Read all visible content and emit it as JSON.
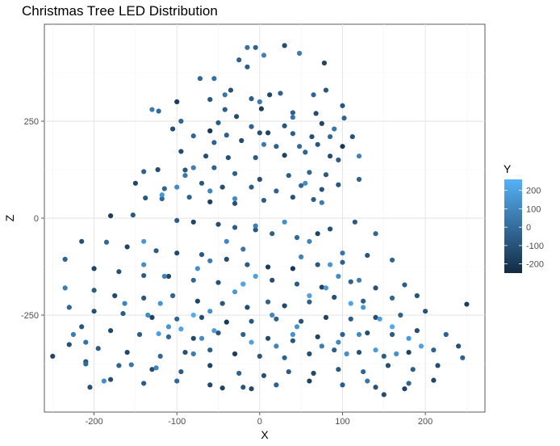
{
  "chart_data": {
    "type": "scatter",
    "title": "Christmas Tree LED Distribution",
    "xlabel": "X",
    "ylabel": "Z",
    "xlim": [
      -260,
      272
    ],
    "ylim": [
      -500,
      500
    ],
    "x_ticks": [
      -200,
      -100,
      0,
      100,
      200
    ],
    "y_ticks": [
      -250,
      0,
      250
    ],
    "x_tick_labels": [
      "-200",
      "-100",
      "0",
      "100",
      "200"
    ],
    "y_tick_labels": [
      "-250",
      "0",
      "250"
    ],
    "grid": true,
    "legend": {
      "title": "Y",
      "position": "right",
      "range": [
        -250,
        260
      ],
      "ticks": [
        200,
        100,
        0,
        -100,
        -200
      ],
      "tick_labels": [
        "200",
        "100",
        "0",
        "-100",
        "-200"
      ],
      "color_low": "#132b43",
      "color_high": "#56b1f7"
    },
    "points": [
      [
        -5,
        440,
        -40
      ],
      [
        30,
        445,
        -120
      ],
      [
        48,
        425,
        60
      ],
      [
        -25,
        408,
        -40
      ],
      [
        -15,
        390,
        -60
      ],
      [
        78,
        400,
        -150
      ],
      [
        -72,
        360,
        -20
      ],
      [
        -55,
        360,
        10
      ],
      [
        -35,
        330,
        -100
      ],
      [
        -42,
        318,
        40
      ],
      [
        -60,
        306,
        -80
      ],
      [
        -10,
        308,
        -60
      ],
      [
        12,
        318,
        -150
      ],
      [
        25,
        322,
        -40
      ],
      [
        65,
        318,
        -30
      ],
      [
        80,
        330,
        -80
      ],
      [
        100,
        290,
        -90
      ],
      [
        -100,
        300,
        -180
      ],
      [
        -122,
        276,
        -10
      ],
      [
        -42,
        280,
        -60
      ],
      [
        2,
        282,
        -180
      ],
      [
        40,
        272,
        -40
      ],
      [
        68,
        270,
        -120
      ],
      [
        -28,
        262,
        -120
      ],
      [
        -50,
        246,
        -70
      ],
      [
        -95,
        250,
        -30
      ],
      [
        -10,
        236,
        -40
      ],
      [
        30,
        238,
        -80
      ],
      [
        75,
        244,
        -140
      ],
      [
        102,
        258,
        -30
      ],
      [
        -105,
        230,
        -120
      ],
      [
        -60,
        225,
        -200
      ],
      [
        -80,
        212,
        -30
      ],
      [
        -40,
        214,
        -50
      ],
      [
        0,
        220,
        -100
      ],
      [
        10,
        220,
        -160
      ],
      [
        40,
        218,
        -60
      ],
      [
        63,
        210,
        -120
      ],
      [
        85,
        210,
        -20
      ],
      [
        112,
        210,
        -100
      ],
      [
        -55,
        195,
        -40
      ],
      [
        -22,
        200,
        -120
      ],
      [
        20,
        185,
        -50
      ],
      [
        48,
        185,
        -10
      ],
      [
        70,
        190,
        -80
      ],
      [
        100,
        185,
        -200
      ],
      [
        -65,
        160,
        -120
      ],
      [
        -95,
        172,
        -130
      ],
      [
        -38,
        156,
        -100
      ],
      [
        -5,
        156,
        -70
      ],
      [
        30,
        162,
        -160
      ],
      [
        55,
        170,
        -40
      ],
      [
        85,
        160,
        -120
      ],
      [
        95,
        150,
        -60
      ],
      [
        -140,
        120,
        -40
      ],
      [
        -123,
        125,
        -110
      ],
      [
        -90,
        124,
        -80
      ],
      [
        -55,
        130,
        -40
      ],
      [
        -30,
        115,
        -50
      ],
      [
        0,
        100,
        -110
      ],
      [
        35,
        110,
        -60
      ],
      [
        60,
        118,
        -20
      ],
      [
        80,
        112,
        -70
      ],
      [
        120,
        100,
        -40
      ],
      [
        -150,
        90,
        -150
      ],
      [
        -115,
        76,
        -30
      ],
      [
        -70,
        90,
        -80
      ],
      [
        -45,
        80,
        -120
      ],
      [
        -10,
        80,
        -60
      ],
      [
        20,
        70,
        -40
      ],
      [
        50,
        84,
        -30
      ],
      [
        75,
        74,
        -100
      ],
      [
        95,
        86,
        -80
      ],
      [
        -138,
        52,
        -80
      ],
      [
        -118,
        50,
        -20
      ],
      [
        -85,
        54,
        -40
      ],
      [
        -60,
        42,
        -180
      ],
      [
        -30,
        38,
        -110
      ],
      [
        5,
        46,
        -60
      ],
      [
        40,
        54,
        -100
      ],
      [
        65,
        48,
        -60
      ],
      [
        -180,
        6,
        -180
      ],
      [
        -153,
        8,
        -70
      ],
      [
        -100,
        -6,
        -60
      ],
      [
        -80,
        -10,
        -150
      ],
      [
        -50,
        -16,
        -120
      ],
      [
        -30,
        -24,
        -60
      ],
      [
        -5,
        -30,
        -90
      ],
      [
        15,
        -40,
        -50
      ],
      [
        45,
        -50,
        -10
      ],
      [
        70,
        -40,
        -160
      ],
      [
        85,
        -28,
        -110
      ],
      [
        115,
        -10,
        -70
      ],
      [
        140,
        -40,
        -20
      ],
      [
        -215,
        -60,
        -100
      ],
      [
        -185,
        -62,
        -20
      ],
      [
        -160,
        -74,
        -160
      ],
      [
        -125,
        -84,
        -60
      ],
      [
        -100,
        -90,
        -140
      ],
      [
        -70,
        -94,
        -80
      ],
      [
        -40,
        -106,
        -120
      ],
      [
        -15,
        -120,
        -60
      ],
      [
        10,
        -126,
        -180
      ],
      [
        40,
        -130,
        -200
      ],
      [
        70,
        -120,
        -70
      ],
      [
        100,
        -114,
        -40
      ],
      [
        130,
        -96,
        -80
      ],
      [
        160,
        -108,
        -30
      ],
      [
        -235,
        -106,
        -40
      ],
      [
        -200,
        -130,
        -150
      ],
      [
        -170,
        -138,
        -100
      ],
      [
        -140,
        -148,
        -60
      ],
      [
        -110,
        -150,
        -140
      ],
      [
        -80,
        -160,
        -20
      ],
      [
        -50,
        -166,
        -100
      ],
      [
        -20,
        -170,
        -70
      ],
      [
        15,
        -160,
        -120
      ],
      [
        45,
        -170,
        -60
      ],
      [
        75,
        -178,
        -150
      ],
      [
        110,
        -164,
        -40
      ],
      [
        140,
        -180,
        -100
      ],
      [
        175,
        -172,
        -60
      ],
      [
        -200,
        -186,
        -60
      ],
      [
        -175,
        -200,
        -130
      ],
      [
        -140,
        -206,
        -80
      ],
      [
        -105,
        -200,
        -30
      ],
      [
        -75,
        -214,
        -150
      ],
      [
        -45,
        -220,
        -80
      ],
      [
        -15,
        -230,
        -120
      ],
      [
        10,
        -216,
        -40
      ],
      [
        30,
        -226,
        -140
      ],
      [
        60,
        -216,
        -50
      ],
      [
        90,
        -204,
        -110
      ],
      [
        125,
        -214,
        -60
      ],
      [
        160,
        -206,
        -30
      ],
      [
        190,
        -200,
        -90
      ],
      [
        -230,
        -230,
        -20
      ],
      [
        -200,
        -240,
        -110
      ],
      [
        -165,
        -246,
        -60
      ],
      [
        -130,
        -256,
        -160
      ],
      [
        -100,
        -260,
        -30
      ],
      [
        -70,
        -256,
        -120
      ],
      [
        -40,
        -268,
        -200
      ],
      [
        -10,
        -266,
        -80
      ],
      [
        20,
        -260,
        -40
      ],
      [
        50,
        -266,
        -100
      ],
      [
        80,
        -256,
        -160
      ],
      [
        110,
        -260,
        -60
      ],
      [
        140,
        -256,
        -120
      ],
      [
        170,
        -250,
        -40
      ],
      [
        200,
        -240,
        -100
      ],
      [
        -215,
        -280,
        -80
      ],
      [
        -180,
        -290,
        -150
      ],
      [
        -145,
        -300,
        -60
      ],
      [
        -110,
        -306,
        -20
      ],
      [
        -80,
        -310,
        -140
      ],
      [
        -50,
        -296,
        -90
      ],
      [
        -20,
        -300,
        -40
      ],
      [
        10,
        -310,
        -130
      ],
      [
        40,
        -316,
        -80
      ],
      [
        70,
        -306,
        -160
      ],
      [
        100,
        -300,
        -50
      ],
      [
        130,
        -296,
        -110
      ],
      [
        160,
        -300,
        -70
      ],
      [
        190,
        -290,
        -120
      ],
      [
        225,
        -300,
        -40
      ],
      [
        -230,
        -326,
        -100
      ],
      [
        -195,
        -336,
        -60
      ],
      [
        -160,
        -346,
        -140
      ],
      [
        -120,
        -356,
        -20
      ],
      [
        -90,
        -346,
        -100
      ],
      [
        -60,
        -340,
        -60
      ],
      [
        -30,
        -350,
        -180
      ],
      [
        0,
        -356,
        -80
      ],
      [
        30,
        -360,
        -40
      ],
      [
        60,
        -350,
        -120
      ],
      [
        90,
        -340,
        -60
      ],
      [
        120,
        -346,
        -100
      ],
      [
        150,
        -356,
        -60
      ],
      [
        180,
        -346,
        -160
      ],
      [
        210,
        -340,
        -40
      ],
      [
        240,
        -330,
        -100
      ],
      [
        -250,
        -356,
        -150
      ],
      [
        -210,
        -370,
        -80
      ],
      [
        -170,
        -380,
        -30
      ],
      [
        -130,
        -390,
        -120
      ],
      [
        -95,
        -396,
        -60
      ],
      [
        -60,
        -380,
        -160
      ],
      [
        -25,
        -400,
        -40
      ],
      [
        5,
        -406,
        -100
      ],
      [
        35,
        -396,
        -60
      ],
      [
        65,
        -400,
        -140
      ],
      [
        95,
        -390,
        -80
      ],
      [
        125,
        -396,
        -30
      ],
      [
        155,
        -380,
        -110
      ],
      [
        185,
        -390,
        -60
      ],
      [
        215,
        -380,
        -120
      ],
      [
        245,
        -360,
        -40
      ],
      [
        -180,
        -416,
        -120
      ],
      [
        -140,
        -426,
        -60
      ],
      [
        -100,
        -420,
        -20
      ],
      [
        -60,
        -430,
        -140
      ],
      [
        -20,
        -436,
        -80
      ],
      [
        20,
        -430,
        -40
      ],
      [
        60,
        -420,
        -160
      ],
      [
        100,
        -430,
        -60
      ],
      [
        140,
        -436,
        -100
      ],
      [
        180,
        -426,
        -30
      ],
      [
        -205,
        -436,
        -100
      ],
      [
        -45,
        -438,
        -160
      ],
      [
        -10,
        -440,
        -140
      ],
      [
        150,
        -455,
        -120
      ],
      [
        175,
        -440,
        -160
      ],
      [
        210,
        -418,
        -150
      ],
      [
        250,
        -222,
        -180
      ],
      [
        -155,
        -378,
        40
      ],
      [
        -225,
        -300,
        60
      ],
      [
        -188,
        -420,
        120
      ],
      [
        -210,
        -376,
        -10
      ],
      [
        -163,
        -220,
        80
      ],
      [
        -122,
        -298,
        190
      ],
      [
        -110,
        -280,
        150
      ],
      [
        -95,
        -286,
        210
      ],
      [
        -80,
        -250,
        240
      ],
      [
        -60,
        -240,
        130
      ],
      [
        -30,
        -190,
        160
      ],
      [
        -20,
        -170,
        220
      ],
      [
        -5,
        -150,
        190
      ],
      [
        15,
        -250,
        100
      ],
      [
        40,
        -300,
        140
      ],
      [
        60,
        -200,
        200
      ],
      [
        80,
        -180,
        170
      ],
      [
        95,
        -150,
        120
      ],
      [
        110,
        -220,
        210
      ],
      [
        125,
        -230,
        160
      ],
      [
        145,
        -260,
        190
      ],
      [
        160,
        -280,
        230
      ],
      [
        180,
        -310,
        170
      ],
      [
        195,
        -330,
        200
      ],
      [
        120,
        -300,
        110
      ],
      [
        140,
        -340,
        180
      ],
      [
        165,
        -350,
        140
      ],
      [
        -125,
        -386,
        90
      ],
      [
        -210,
        -320,
        20
      ],
      [
        -235,
        -180,
        60
      ],
      [
        -140,
        -120,
        130
      ],
      [
        -115,
        -150,
        80
      ],
      [
        -75,
        -130,
        140
      ],
      [
        -40,
        -60,
        100
      ],
      [
        -5,
        -20,
        70
      ],
      [
        30,
        -10,
        130
      ],
      [
        60,
        -60,
        90
      ],
      [
        85,
        -120,
        160
      ],
      [
        120,
        -160,
        60
      ],
      [
        -140,
        -60,
        170
      ],
      [
        -120,
        -220,
        150
      ],
      [
        -135,
        -250,
        110
      ],
      [
        -70,
        -310,
        120
      ],
      [
        -55,
        -290,
        180
      ],
      [
        -10,
        -320,
        200
      ],
      [
        20,
        -330,
        90
      ],
      [
        45,
        -280,
        150
      ],
      [
        75,
        -330,
        70
      ],
      [
        95,
        -320,
        110
      ],
      [
        105,
        -350,
        130
      ],
      [
        -60,
        -110,
        60
      ],
      [
        -20,
        -80,
        40
      ],
      [
        50,
        -100,
        90
      ],
      [
        100,
        -90,
        30
      ],
      [
        5,
        190,
        50
      ],
      [
        40,
        260,
        30
      ],
      [
        55,
        90,
        120
      ],
      [
        75,
        40,
        60
      ],
      [
        -90,
        110,
        40
      ],
      [
        -60,
        70,
        90
      ],
      [
        -30,
        50,
        120
      ],
      [
        -118,
        60,
        150
      ],
      [
        -100,
        80,
        110
      ],
      [
        -80,
        130,
        70
      ],
      [
        90,
        230,
        40
      ],
      [
        120,
        160,
        80
      ],
      [
        -130,
        280,
        60
      ],
      [
        -15,
        440,
        20
      ],
      [
        5,
        420,
        80
      ],
      [
        0,
        300,
        60
      ],
      [
        -80,
        -350,
        60
      ],
      [
        130,
        -420,
        40
      ]
    ]
  }
}
